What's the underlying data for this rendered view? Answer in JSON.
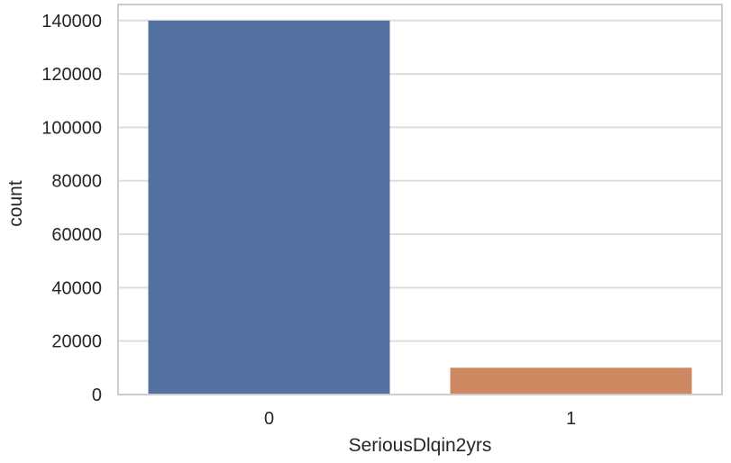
{
  "chart_data": {
    "type": "bar",
    "title": "",
    "xlabel": "SeriousDlqin2yrs",
    "ylabel": "count",
    "categories": [
      "0",
      "1"
    ],
    "values": [
      139974,
      10026
    ],
    "ylim": [
      0,
      146000
    ],
    "yticks": [
      0,
      20000,
      40000,
      60000,
      80000,
      100000,
      120000,
      140000
    ],
    "ytick_labels": [
      "0",
      "20000",
      "40000",
      "60000",
      "80000",
      "100000",
      "120000",
      "140000"
    ],
    "grid": true,
    "colors": [
      "#5471a2",
      "#cd8761"
    ],
    "background": "#ffffff",
    "grid_color": "#dddddd",
    "frame_color": "#cccccc"
  }
}
